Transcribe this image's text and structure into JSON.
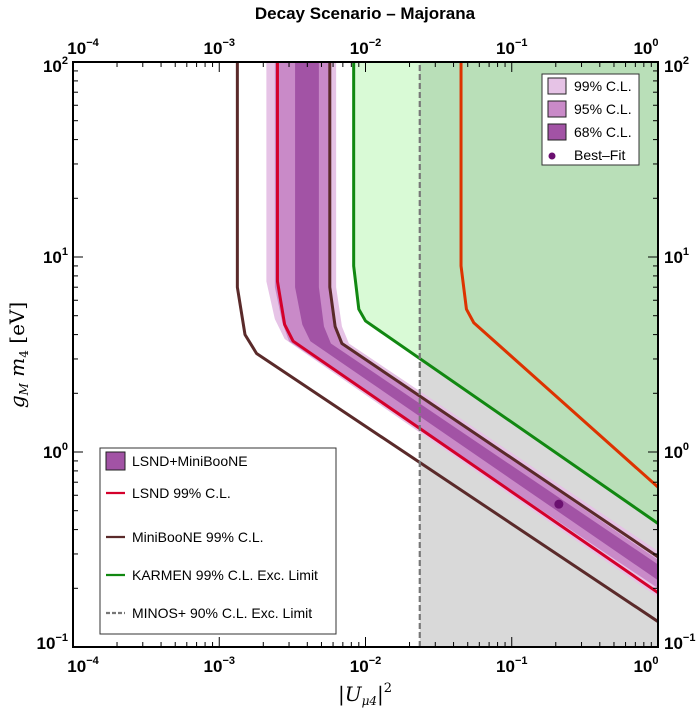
{
  "chart_data": {
    "type": "line",
    "title": "Decay Scenario – Majorana",
    "xlabel": "|Uμ4|²",
    "ylabel": "gM m4 [eV]",
    "xscale": "log",
    "yscale": "log",
    "xlim": [
      0.0001,
      1
    ],
    "ylim": [
      0.1,
      100
    ],
    "x_ticks": [
      {
        "base": "10",
        "exp": "−4",
        "value": 0.0001
      },
      {
        "base": "10",
        "exp": "−3",
        "value": 0.001
      },
      {
        "base": "10",
        "exp": "−2",
        "value": 0.01
      },
      {
        "base": "10",
        "exp": "−1",
        "value": 0.1
      },
      {
        "base": "10",
        "exp": "0",
        "value": 1
      }
    ],
    "y_ticks": [
      {
        "base": "10",
        "exp": "−1",
        "value": 0.1
      },
      {
        "base": "10",
        "exp": "0",
        "value": 1
      },
      {
        "base": "10",
        "exp": "1",
        "value": 10
      },
      {
        "base": "10",
        "exp": "2",
        "value": 100
      }
    ],
    "x_ticks_top": [
      "10⁻⁴",
      "10⁻³",
      "10⁻²",
      "10⁻¹",
      "10⁰"
    ],
    "y_ticks_right": [
      "10⁻¹",
      "10⁰",
      "10¹",
      "10²"
    ],
    "regions": [
      {
        "name": "KARMEN 99% C.L. Exc. Region",
        "color": "#d9fad6",
        "boundary": [
          [
            0.0083,
            100
          ],
          [
            0.0083,
            9
          ],
          [
            0.009,
            5.4
          ],
          [
            0.01,
            4.7
          ],
          [
            0.0235,
            3.07
          ],
          [
            1,
            0.43
          ]
        ]
      },
      {
        "name": "MINOS+ 90% C.L. Exc. Region",
        "color": "#d9d9d9",
        "x_min": 0.0235,
        "y_max": 100
      },
      {
        "name": "KARMEN ∩ MINOS+",
        "color": "#b9dfb8"
      }
    ],
    "bands": [
      {
        "name": "99% C.L.",
        "color": "#e6c3e6",
        "lower": [
          [
            0.0021,
            100
          ],
          [
            0.0021,
            7.5
          ],
          [
            0.0024,
            4.8
          ],
          [
            0.0028,
            3.8
          ],
          [
            1,
            0.18
          ]
        ],
        "upper": [
          [
            0.0063,
            100
          ],
          [
            0.0063,
            7
          ],
          [
            0.0069,
            4.4
          ],
          [
            0.0077,
            3.6
          ],
          [
            1,
            0.31
          ]
        ]
      },
      {
        "name": "95% C.L.",
        "color": "#c98ac8",
        "lower": [
          [
            0.0024,
            100
          ],
          [
            0.0024,
            7
          ],
          [
            0.0027,
            4.6
          ],
          [
            0.003,
            3.7
          ],
          [
            1,
            0.2
          ]
        ],
        "upper": [
          [
            0.0058,
            100
          ],
          [
            0.0058,
            7
          ],
          [
            0.0063,
            4.4
          ],
          [
            0.007,
            3.6
          ],
          [
            1,
            0.28
          ]
        ]
      },
      {
        "name": "68% C.L.",
        "color": "#a253a5",
        "lower": [
          [
            0.0033,
            100
          ],
          [
            0.0033,
            7
          ],
          [
            0.0037,
            4.5
          ],
          [
            0.0042,
            3.7
          ],
          [
            1,
            0.22
          ]
        ],
        "upper": [
          [
            0.0048,
            100
          ],
          [
            0.0048,
            7
          ],
          [
            0.0052,
            4.4
          ],
          [
            0.0058,
            3.6
          ],
          [
            1,
            0.265
          ]
        ]
      }
    ],
    "series": [
      {
        "name": "LSND 99% C.L.",
        "color": "#d4002b",
        "points": [
          [
            0.0025,
            100
          ],
          [
            0.0025,
            7.5
          ],
          [
            0.0028,
            4.5
          ],
          [
            0.0032,
            3.7
          ],
          [
            1,
            0.19
          ]
        ]
      },
      {
        "name": "MiniBooNE 99% C.L.",
        "color": "#5a2a2a",
        "points": [
          [
            0.00133,
            100
          ],
          [
            0.00133,
            7
          ],
          [
            0.0015,
            4
          ],
          [
            0.0018,
            3.2
          ],
          [
            1,
            0.135
          ]
        ]
      },
      {
        "name": "MiniBooNE 99% C.L. (upper)",
        "color": "#5a2a2a",
        "points": [
          [
            0.0057,
            100
          ],
          [
            0.0057,
            7
          ],
          [
            0.0062,
            4.4
          ],
          [
            0.0069,
            3.6
          ],
          [
            1,
            0.29
          ]
        ]
      },
      {
        "name": "KARMEN 99% C.L. Exc. Limit",
        "color": "#118811",
        "points": [
          [
            0.0083,
            100
          ],
          [
            0.0083,
            9
          ],
          [
            0.009,
            5.4
          ],
          [
            0.01,
            4.7
          ],
          [
            1,
            0.43
          ]
        ]
      },
      {
        "name": "KARMEN 99% C.L. Exc. Limit (2nd)",
        "color": "#dd3300",
        "points": [
          [
            0.045,
            100
          ],
          [
            0.045,
            9
          ],
          [
            0.049,
            5.4
          ],
          [
            0.055,
            4.6
          ],
          [
            1,
            0.66
          ]
        ]
      },
      {
        "name": "MINOS+ 90% C.L. Exc. Limit",
        "color": "#777777",
        "dashed": true,
        "points": [
          [
            0.0235,
            0.1
          ],
          [
            0.0235,
            100
          ]
        ]
      }
    ],
    "best_fit": {
      "name": "Best–Fit",
      "x": 0.21,
      "y": 0.54,
      "color": "#6b1070"
    },
    "legend_cl": [
      {
        "label": "99% C.L.",
        "color": "#e6c3e6"
      },
      {
        "label": "95% C.L.",
        "color": "#c98ac8"
      },
      {
        "label": "68% C.L.",
        "color": "#a253a5"
      },
      {
        "label": "Best–Fit",
        "color": "#6b1070"
      }
    ],
    "legend_main": [
      {
        "label": "LSND+MiniBooNE",
        "kind": "box",
        "color": "#a253a5"
      },
      {
        "label": "LSND 99% C.L.",
        "kind": "line",
        "color": "#d4002b"
      },
      {
        "label": "MiniBooNE 99% C.L.",
        "kind": "line",
        "color": "#5a2a2a"
      },
      {
        "label": "KARMEN 99% C.L. Exc. Limit",
        "kind": "line",
        "color": "#118811"
      },
      {
        "label": "MINOS+ 90% C.L. Exc. Limit",
        "kind": "dash",
        "color": "#777777"
      }
    ]
  }
}
